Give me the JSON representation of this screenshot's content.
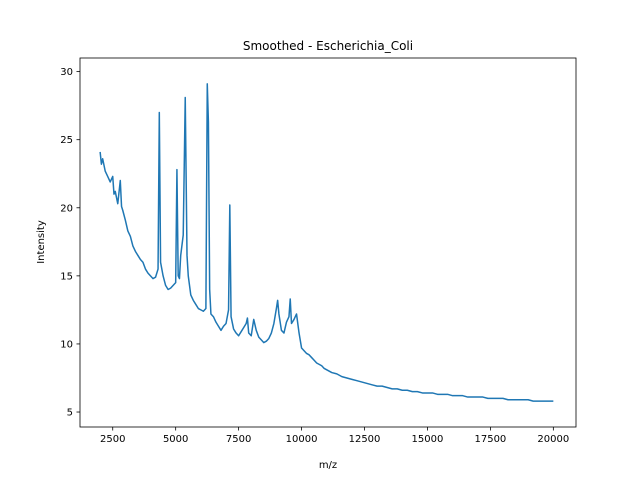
{
  "chart_data": {
    "type": "line",
    "title": "Smoothed - Escherichia_Coli",
    "xlabel": "m/z",
    "ylabel": "Intensity",
    "xlim": [
      1200,
      20900
    ],
    "ylim": [
      3.9,
      31.0
    ],
    "xticks": [
      {
        "value": 2500,
        "label": "2500"
      },
      {
        "value": 5000,
        "label": "5000"
      },
      {
        "value": 7500,
        "label": "7500"
      },
      {
        "value": 10000,
        "label": "10000"
      },
      {
        "value": 12500,
        "label": "12500"
      },
      {
        "value": 15000,
        "label": "15000"
      },
      {
        "value": 17500,
        "label": "17500"
      },
      {
        "value": 20000,
        "label": "20000"
      }
    ],
    "yticks": [
      {
        "value": 5,
        "label": "5"
      },
      {
        "value": 10,
        "label": "10"
      },
      {
        "value": 15,
        "label": "15"
      },
      {
        "value": 20,
        "label": "20"
      },
      {
        "value": 25,
        "label": "25"
      },
      {
        "value": 30,
        "label": "30"
      }
    ],
    "grid": false,
    "legend": "none",
    "series": [
      {
        "color": "#1f77b4",
        "x": [
          2000,
          2050,
          2100,
          2200,
          2300,
          2400,
          2500,
          2550,
          2600,
          2700,
          2800,
          2850,
          2900,
          3000,
          3100,
          3200,
          3300,
          3400,
          3500,
          3600,
          3700,
          3800,
          3900,
          4000,
          4100,
          4200,
          4300,
          4350,
          4400,
          4500,
          4600,
          4700,
          4800,
          4900,
          5000,
          5050,
          5100,
          5150,
          5200,
          5300,
          5380,
          5450,
          5500,
          5600,
          5700,
          5800,
          5900,
          6000,
          6100,
          6200,
          6255,
          6300,
          6350,
          6400,
          6500,
          6600,
          6700,
          6800,
          6900,
          7000,
          7100,
          7150,
          7200,
          7300,
          7400,
          7500,
          7600,
          7700,
          7800,
          7850,
          7900,
          8000,
          8100,
          8200,
          8300,
          8400,
          8500,
          8600,
          8700,
          8800,
          8900,
          9000,
          9050,
          9100,
          9200,
          9300,
          9400,
          9500,
          9550,
          9600,
          9700,
          9800,
          9900,
          10000,
          10100,
          10200,
          10300,
          10400,
          10500,
          10600,
          10700,
          10800,
          10900,
          11000,
          11200,
          11400,
          11600,
          11800,
          12000,
          12200,
          12400,
          12600,
          12800,
          13000,
          13200,
          13400,
          13600,
          13800,
          14000,
          14200,
          14400,
          14600,
          14800,
          15000,
          15200,
          15400,
          15600,
          15800,
          16000,
          16200,
          16400,
          16600,
          16800,
          17000,
          17200,
          17400,
          17600,
          17800,
          18000,
          18200,
          18400,
          18600,
          18800,
          19000,
          19200,
          19400,
          19600,
          19800,
          20000
        ],
        "y": [
          24.1,
          23.2,
          23.6,
          22.7,
          22.3,
          21.9,
          22.3,
          21.0,
          21.2,
          20.3,
          22.0,
          20.1,
          19.8,
          19.1,
          18.3,
          17.9,
          17.2,
          16.8,
          16.5,
          16.2,
          16.0,
          15.5,
          15.2,
          15.0,
          14.8,
          14.9,
          15.5,
          27.0,
          16.0,
          15.0,
          14.3,
          14.0,
          14.1,
          14.3,
          14.5,
          22.8,
          15.0,
          14.8,
          16.5,
          18.0,
          28.1,
          16.5,
          15.0,
          13.6,
          13.2,
          12.9,
          12.6,
          12.5,
          12.4,
          12.6,
          29.1,
          26.3,
          14.0,
          12.2,
          12.0,
          11.6,
          11.3,
          11.0,
          11.3,
          11.5,
          12.5,
          20.2,
          12.0,
          11.1,
          10.8,
          10.6,
          10.9,
          11.2,
          11.5,
          11.9,
          10.8,
          10.6,
          11.8,
          11.0,
          10.5,
          10.3,
          10.1,
          10.2,
          10.4,
          10.8,
          11.5,
          12.6,
          13.2,
          12.2,
          11.0,
          10.8,
          11.6,
          12.0,
          13.3,
          11.5,
          11.8,
          12.2,
          10.8,
          9.7,
          9.5,
          9.3,
          9.2,
          9.0,
          8.8,
          8.6,
          8.5,
          8.4,
          8.2,
          8.1,
          7.9,
          7.8,
          7.6,
          7.5,
          7.4,
          7.3,
          7.2,
          7.1,
          7.0,
          6.9,
          6.9,
          6.8,
          6.7,
          6.7,
          6.6,
          6.6,
          6.5,
          6.5,
          6.4,
          6.4,
          6.4,
          6.3,
          6.3,
          6.3,
          6.2,
          6.2,
          6.2,
          6.1,
          6.1,
          6.1,
          6.1,
          6.0,
          6.0,
          6.0,
          6.0,
          5.9,
          5.9,
          5.9,
          5.9,
          5.9,
          5.8,
          5.8,
          5.8,
          5.8,
          5.8
        ]
      }
    ]
  }
}
